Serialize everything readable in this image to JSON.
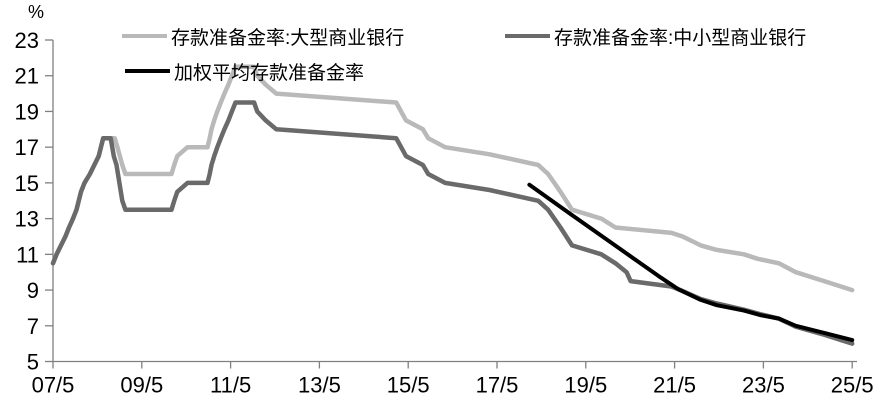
{
  "chart_data": {
    "type": "line",
    "title": "",
    "ylabel": "%",
    "xlabel": "",
    "ylim": [
      5,
      23
    ],
    "y_tick_step": 2,
    "grid": false,
    "legend_position": "top",
    "axis_color": "#808080",
    "x_ticks": [
      {
        "t": 2007.37,
        "label": "07/5"
      },
      {
        "t": 2009.37,
        "label": "09/5"
      },
      {
        "t": 2011.37,
        "label": "11/5"
      },
      {
        "t": 2013.37,
        "label": "13/5"
      },
      {
        "t": 2015.37,
        "label": "15/5"
      },
      {
        "t": 2017.37,
        "label": "17/5"
      },
      {
        "t": 2019.37,
        "label": "19/5"
      },
      {
        "t": 2021.37,
        "label": "21/5"
      },
      {
        "t": 2023.37,
        "label": "23/5"
      },
      {
        "t": 2025.37,
        "label": "25/5"
      }
    ],
    "series": [
      {
        "id": "large-banks",
        "name": "存款准备金率:大型商业银行",
        "color": "#b9b9b9",
        "width": 4.5,
        "points": [
          [
            2007.37,
            10.5
          ],
          [
            2007.45,
            11
          ],
          [
            2007.55,
            11.5
          ],
          [
            2007.65,
            12
          ],
          [
            2007.73,
            12.5
          ],
          [
            2007.82,
            13
          ],
          [
            2007.9,
            13.5
          ],
          [
            2008.0,
            14.5
          ],
          [
            2008.08,
            15
          ],
          [
            2008.2,
            15.5
          ],
          [
            2008.3,
            16
          ],
          [
            2008.4,
            16.5
          ],
          [
            2008.5,
            17.5
          ],
          [
            2008.76,
            17.5
          ],
          [
            2008.82,
            17
          ],
          [
            2008.93,
            16
          ],
          [
            2009.0,
            15.5
          ],
          [
            2010.04,
            15.5
          ],
          [
            2010.1,
            16
          ],
          [
            2010.17,
            16.5
          ],
          [
            2010.4,
            17
          ],
          [
            2010.85,
            17
          ],
          [
            2010.9,
            17.5
          ],
          [
            2010.94,
            18
          ],
          [
            2011.0,
            18.5
          ],
          [
            2011.07,
            19
          ],
          [
            2011.15,
            19.5
          ],
          [
            2011.23,
            20
          ],
          [
            2011.32,
            20.5
          ],
          [
            2011.4,
            21
          ],
          [
            2011.48,
            21.5
          ],
          [
            2011.9,
            21.5
          ],
          [
            2011.97,
            21
          ],
          [
            2012.16,
            20.5
          ],
          [
            2012.4,
            20
          ],
          [
            2015.1,
            19.5
          ],
          [
            2015.32,
            18.5
          ],
          [
            2015.7,
            18
          ],
          [
            2015.82,
            17.5
          ],
          [
            2016.2,
            17
          ],
          [
            2017.2,
            16.6
          ],
          [
            2018.3,
            16
          ],
          [
            2018.52,
            15.5
          ],
          [
            2018.8,
            14.5
          ],
          [
            2019.06,
            13.5
          ],
          [
            2019.72,
            13
          ],
          [
            2020.04,
            12.5
          ],
          [
            2021.3,
            12.2
          ],
          [
            2021.55,
            12
          ],
          [
            2021.96,
            11.5
          ],
          [
            2022.32,
            11.25
          ],
          [
            2022.93,
            11
          ],
          [
            2023.24,
            10.75
          ],
          [
            2023.72,
            10.5
          ],
          [
            2024.1,
            10
          ],
          [
            2024.74,
            9.5
          ],
          [
            2025.37,
            9
          ]
        ]
      },
      {
        "id": "small-medium-banks",
        "name": "存款准备金率:中小型商业银行",
        "color": "#6a6a6a",
        "width": 4.5,
        "points": [
          [
            2007.37,
            10.5
          ],
          [
            2007.45,
            11
          ],
          [
            2007.55,
            11.5
          ],
          [
            2007.65,
            12
          ],
          [
            2007.73,
            12.5
          ],
          [
            2007.82,
            13
          ],
          [
            2007.9,
            13.5
          ],
          [
            2008.0,
            14.5
          ],
          [
            2008.08,
            15
          ],
          [
            2008.2,
            15.5
          ],
          [
            2008.3,
            16
          ],
          [
            2008.4,
            16.5
          ],
          [
            2008.5,
            17.5
          ],
          [
            2008.67,
            17.5
          ],
          [
            2008.74,
            16.5
          ],
          [
            2008.8,
            16
          ],
          [
            2008.93,
            14
          ],
          [
            2009.0,
            13.5
          ],
          [
            2010.04,
            13.5
          ],
          [
            2010.1,
            14
          ],
          [
            2010.17,
            14.5
          ],
          [
            2010.4,
            15
          ],
          [
            2010.85,
            15
          ],
          [
            2010.9,
            15.5
          ],
          [
            2010.94,
            16
          ],
          [
            2011.0,
            16.5
          ],
          [
            2011.07,
            17
          ],
          [
            2011.15,
            17.5
          ],
          [
            2011.23,
            18
          ],
          [
            2011.32,
            18.5
          ],
          [
            2011.4,
            19
          ],
          [
            2011.48,
            19.5
          ],
          [
            2011.9,
            19.5
          ],
          [
            2011.97,
            19
          ],
          [
            2012.16,
            18.5
          ],
          [
            2012.4,
            18
          ],
          [
            2015.1,
            17.5
          ],
          [
            2015.32,
            16.5
          ],
          [
            2015.7,
            16
          ],
          [
            2015.82,
            15.5
          ],
          [
            2016.2,
            15
          ],
          [
            2017.2,
            14.6
          ],
          [
            2018.3,
            14
          ],
          [
            2018.52,
            13.5
          ],
          [
            2018.8,
            12.5
          ],
          [
            2019.06,
            11.5
          ],
          [
            2019.72,
            11
          ],
          [
            2020.04,
            10.5
          ],
          [
            2020.29,
            10
          ],
          [
            2020.38,
            9.5
          ],
          [
            2021.3,
            9.2
          ],
          [
            2021.5,
            9
          ],
          [
            2021.96,
            8.5
          ],
          [
            2022.32,
            8.25
          ],
          [
            2022.93,
            7.9
          ],
          [
            2023.3,
            7.65
          ],
          [
            2023.72,
            7.4
          ],
          [
            2024.1,
            6.95
          ],
          [
            2024.74,
            6.5
          ],
          [
            2025.37,
            6
          ]
        ]
      },
      {
        "id": "weighted-average",
        "name": "加权平均存款准备金率",
        "color": "#000000",
        "width": 4,
        "points": [
          [
            2018.1,
            14.9
          ],
          [
            2019.0,
            13.3
          ],
          [
            2020.0,
            11.55
          ],
          [
            2021.0,
            9.8
          ],
          [
            2021.45,
            9.05
          ],
          [
            2021.96,
            8.45
          ],
          [
            2022.32,
            8.15
          ],
          [
            2022.93,
            7.85
          ],
          [
            2023.3,
            7.6
          ],
          [
            2023.72,
            7.4
          ],
          [
            2024.1,
            7.0
          ],
          [
            2024.74,
            6.6
          ],
          [
            2025.37,
            6.2
          ]
        ]
      }
    ]
  }
}
